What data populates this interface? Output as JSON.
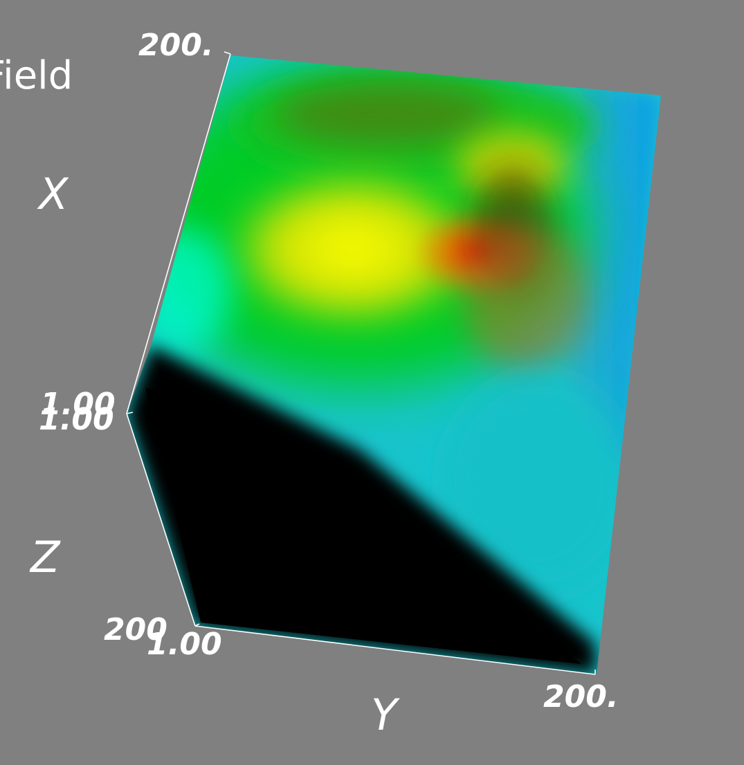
{
  "scene": {
    "field_title": "Field",
    "axes": {
      "x": {
        "name": "X",
        "min_label": "1.00",
        "max_label": "200."
      },
      "y": {
        "name": "Y",
        "min_label": "1.00",
        "max_label": "200."
      },
      "z": {
        "name": "Z",
        "min_label": "1.00",
        "max_label": "200"
      }
    },
    "colors": {
      "background": "#808080",
      "axis_lines": "#ffffff",
      "hot": "#ff1a00",
      "warm": "#ffff00",
      "mid": "#00d21e",
      "cool": "#00e6d2",
      "cold": "#1496e6",
      "shadow": "#000000"
    }
  }
}
